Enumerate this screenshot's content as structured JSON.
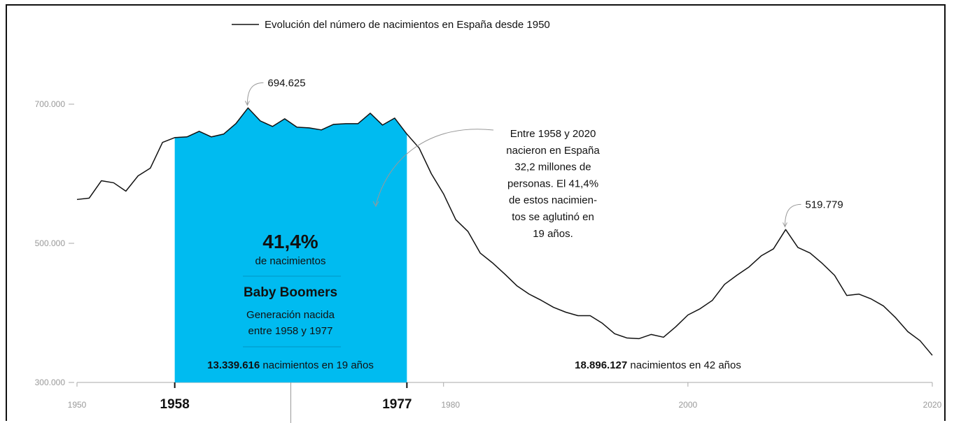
{
  "chart_data": {
    "type": "line",
    "title": "Evolución del número de nacimientos en España desde 1950",
    "series": [
      {
        "name": "Evolución del número de nacimientos en España desde 1950",
        "x": [
          1950,
          1951,
          1952,
          1953,
          1954,
          1955,
          1956,
          1957,
          1958,
          1959,
          1960,
          1961,
          1962,
          1963,
          1964,
          1965,
          1966,
          1967,
          1968,
          1969,
          1970,
          1971,
          1972,
          1973,
          1974,
          1975,
          1976,
          1977,
          1978,
          1979,
          1980,
          1981,
          1982,
          1983,
          1984,
          1985,
          1986,
          1987,
          1988,
          1989,
          1990,
          1991,
          1992,
          1993,
          1994,
          1995,
          1996,
          1997,
          1998,
          1999,
          2000,
          2001,
          2002,
          2003,
          2004,
          2005,
          2006,
          2007,
          2008,
          2009,
          2010,
          2011,
          2012,
          2013,
          2014,
          2015,
          2016,
          2017,
          2018,
          2019,
          2020
        ],
        "values": [
          563000,
          565000,
          590000,
          587000,
          575000,
          597000,
          608000,
          645000,
          652000,
          653000,
          661000,
          653000,
          657000,
          672000,
          694625,
          676000,
          668000,
          679000,
          667000,
          666000,
          663000,
          671000,
          672000,
          672000,
          687000,
          670000,
          680000,
          657000,
          637000,
          600000,
          571000,
          534000,
          517000,
          486000,
          472000,
          456000,
          439000,
          427000,
          418000,
          408000,
          401000,
          396000,
          396000,
          385000,
          370000,
          364000,
          363000,
          369000,
          365000,
          380000,
          397000,
          406000,
          418000,
          441000,
          454000,
          466000,
          482000,
          492000,
          519779,
          494000,
          486000,
          471000,
          454000,
          425000,
          427000,
          420000,
          410000,
          393000,
          373000,
          360000,
          339000
        ]
      }
    ],
    "xlim": [
      1950,
      2020
    ],
    "ylim": [
      300000,
      720000
    ],
    "yticks": [
      "300.000",
      "500.000",
      "700.000"
    ],
    "yticks_values": [
      300000,
      500000,
      700000
    ],
    "xticks": [
      "1950",
      "1980",
      "2000",
      "2020"
    ],
    "xticks_values": [
      1950,
      1980,
      2000,
      2020
    ],
    "highlight_range": [
      1958,
      1977
    ],
    "highlight_color": "#00bbf0",
    "highlight_labels": [
      "1958",
      "1977"
    ],
    "peak_labels": [
      {
        "x": 1964,
        "y": 694625,
        "text": "694.625"
      },
      {
        "x": 2008,
        "y": 519779,
        "text": "519.779"
      }
    ]
  },
  "highlight_box": {
    "pct": "41,4%",
    "pct_sub": "de nacimientos",
    "title": "Baby Boomers",
    "desc_line1": "Generación nacida",
    "desc_line2": "entre 1958 y 1977",
    "total_bold": "13.339.616",
    "total_rest": " nacimientos en 19 años"
  },
  "right_total": {
    "bold": "18.896.127",
    "rest": " nacimientos en 42 años"
  },
  "annotation": {
    "lines": [
      "Entre 1958 y 2020",
      "nacieron en España",
      "32,2 millones de",
      "personas. El 41,4%",
      "de estos nacimien-",
      "tos se aglutinó en",
      "19 años."
    ]
  }
}
